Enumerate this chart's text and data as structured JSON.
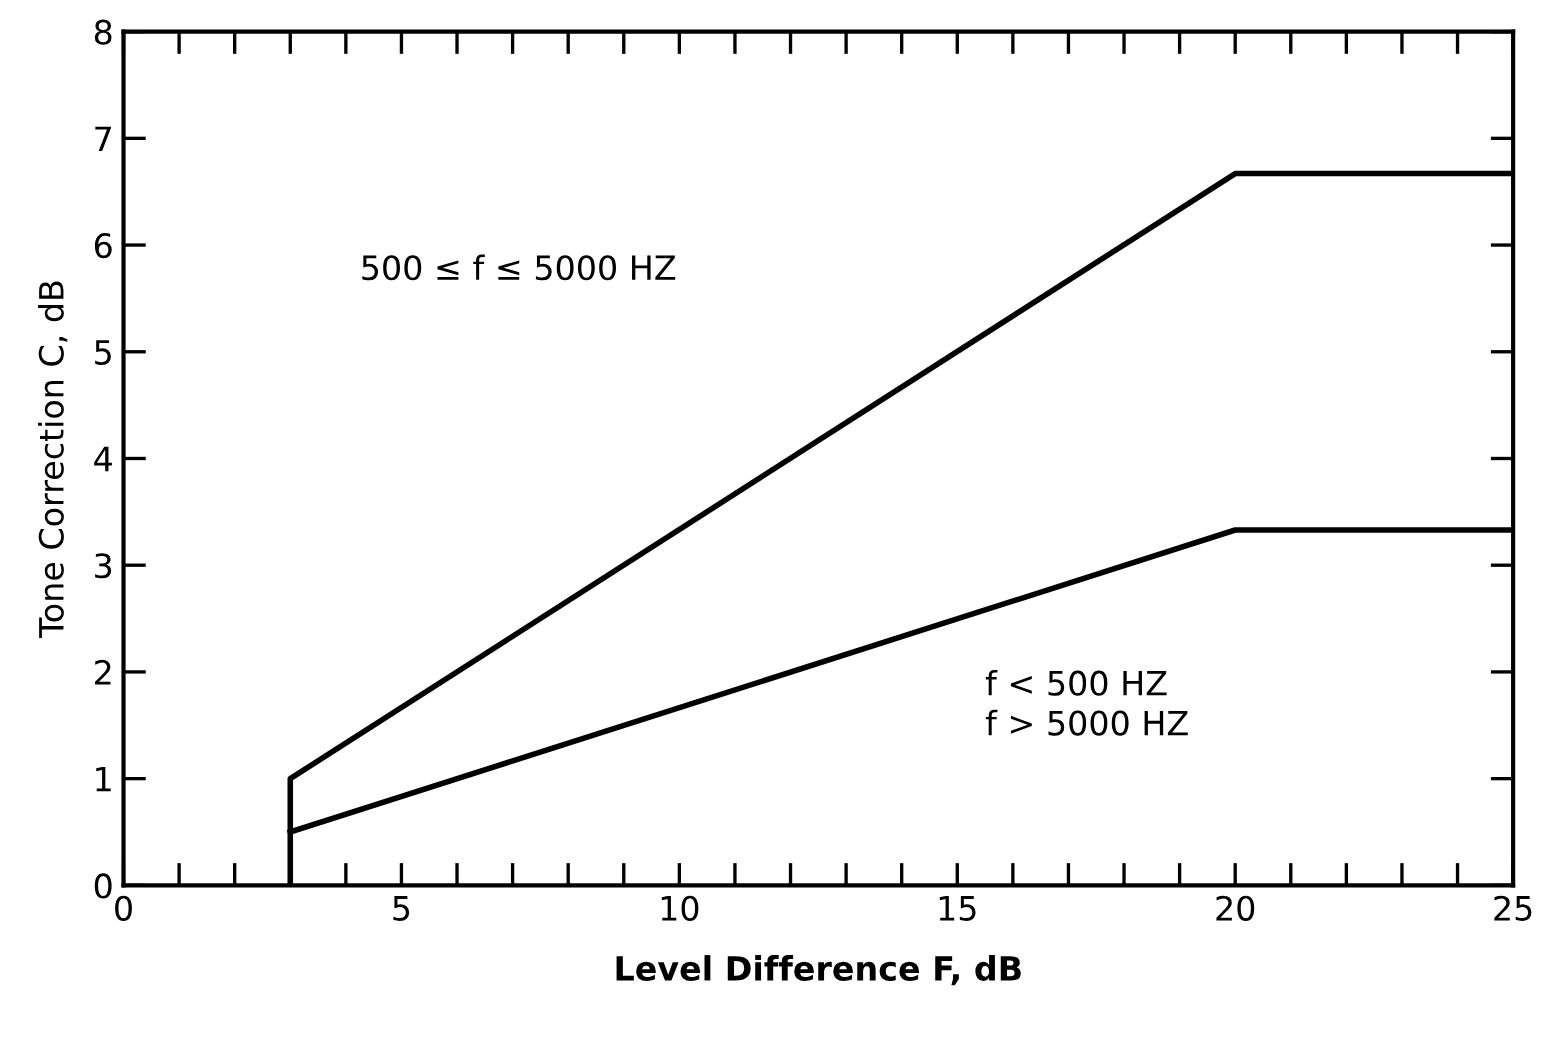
{
  "chart_data": {
    "type": "line",
    "xlabel": "Level Difference F, dB",
    "ylabel": "Tone Correction C, dB",
    "xlim": [
      0,
      25
    ],
    "ylim": [
      0,
      8
    ],
    "xticks": [
      0,
      {
        "value": 1,
        "label": null
      },
      {
        "value": 2,
        "label": null
      },
      {
        "value": 3,
        "label": null
      },
      {
        "value": 4,
        "label": null
      },
      5,
      {
        "value": 6,
        "label": null
      },
      {
        "value": 7,
        "label": null
      },
      {
        "value": 8,
        "label": null
      },
      {
        "value": 9,
        "label": null
      },
      10,
      {
        "value": 11,
        "label": null
      },
      {
        "value": 12,
        "label": null
      },
      {
        "value": 13,
        "label": null
      },
      {
        "value": 14,
        "label": null
      },
      15,
      {
        "value": 16,
        "label": null
      },
      {
        "value": 17,
        "label": null
      },
      {
        "value": 18,
        "label": null
      },
      {
        "value": 19,
        "label": null
      },
      20,
      {
        "value": 21,
        "label": null
      },
      {
        "value": 22,
        "label": null
      },
      {
        "value": 23,
        "label": null
      },
      {
        "value": 24,
        "label": null
      },
      25
    ],
    "yticks": [
      0,
      1,
      2,
      3,
      4,
      5,
      6,
      7,
      8
    ],
    "grid": false,
    "legend": false,
    "marker": "none",
    "line_style": "solid",
    "series": [
      {
        "color": "#000000",
        "x": [
          3,
          3,
          20,
          25
        ],
        "values": [
          0,
          1,
          6.67,
          6.67
        ]
      },
      {
        "color": "#000000",
        "x": [
          3,
          20,
          25
        ],
        "values": [
          0.5,
          3.33,
          3.33
        ]
      }
    ],
    "annotations": [
      "500 ≤ f ≤ 5000 HZ",
      "f < 500 HZ\nf > 5000 HZ"
    ]
  }
}
